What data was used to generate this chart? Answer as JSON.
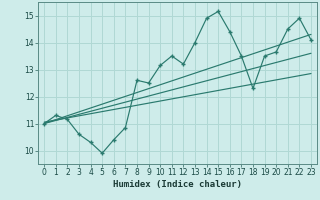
{
  "xlabel": "Humidex (Indice chaleur)",
  "ylabel": "",
  "bg_color": "#ceecea",
  "grid_color": "#b0d8d4",
  "line_color": "#2a7a6e",
  "spine_color": "#5a8a85",
  "xlim": [
    -0.5,
    23.5
  ],
  "ylim": [
    9.5,
    15.5
  ],
  "xticks": [
    0,
    1,
    2,
    3,
    4,
    5,
    6,
    7,
    8,
    9,
    10,
    11,
    12,
    13,
    14,
    15,
    16,
    17,
    18,
    19,
    20,
    21,
    22,
    23
  ],
  "yticks": [
    10,
    11,
    12,
    13,
    14,
    15
  ],
  "series": [
    [
      0,
      11.0
    ],
    [
      1,
      11.3
    ],
    [
      2,
      11.15
    ],
    [
      3,
      10.6
    ],
    [
      4,
      10.3
    ],
    [
      5,
      9.9
    ],
    [
      6,
      10.4
    ],
    [
      7,
      10.85
    ],
    [
      8,
      12.6
    ],
    [
      9,
      12.5
    ],
    [
      10,
      13.15
    ],
    [
      11,
      13.5
    ],
    [
      12,
      13.2
    ],
    [
      13,
      14.0
    ],
    [
      14,
      14.9
    ],
    [
      15,
      15.15
    ],
    [
      16,
      14.4
    ],
    [
      17,
      13.5
    ],
    [
      18,
      12.3
    ],
    [
      19,
      13.5
    ],
    [
      20,
      13.65
    ],
    [
      21,
      14.5
    ],
    [
      22,
      14.9
    ],
    [
      23,
      14.1
    ]
  ],
  "regression_lines": [
    {
      "x": [
        0,
        23
      ],
      "y": [
        11.0,
        14.3
      ]
    },
    {
      "x": [
        0,
        23
      ],
      "y": [
        11.0,
        13.6
      ]
    },
    {
      "x": [
        0,
        23
      ],
      "y": [
        11.05,
        12.85
      ]
    }
  ]
}
